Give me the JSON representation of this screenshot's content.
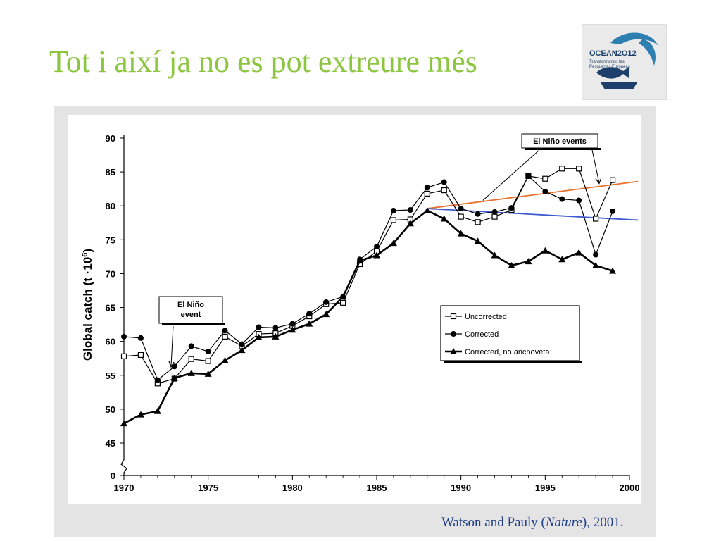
{
  "slide": {
    "title": "Tot i així ja no es pot extreure més",
    "citation_authors": "Watson and Pauly (",
    "citation_journal": "Nature",
    "citation_year": "), 2001."
  },
  "logo": {
    "name": "OCEAN2O12",
    "tagline_1": "Transformando las",
    "tagline_2": "Pesquerías Europeas",
    "colors": {
      "navy": "#1d3f6b",
      "teal": "#2c7fae",
      "light": "#cfe0ec"
    }
  },
  "chart_data": {
    "type": "line",
    "xlabel": "",
    "ylabel": "Global catch (t ·10",
    "ylabel_superscript": "6",
    "ylabel_close": ")",
    "x_ticks": [
      1970,
      1975,
      1980,
      1985,
      1990,
      1995,
      2000
    ],
    "x_tick_labels": [
      "1970",
      "1975",
      "1980",
      "1985",
      "1990",
      "1995",
      "2000"
    ],
    "y_ticks": [
      0,
      45,
      50,
      55,
      60,
      65,
      70,
      75,
      80,
      85,
      90
    ],
    "y_tick_labels": [
      "0",
      "45",
      "50",
      "55",
      "60",
      "65",
      "70",
      "75",
      "80",
      "85",
      "90"
    ],
    "y_axis_break": true,
    "xlim": [
      1970,
      2000
    ],
    "ylim": [
      45,
      90
    ],
    "grid": false,
    "legend_position": "right-center",
    "series": [
      {
        "name": "Uncorrected",
        "marker": "open-square",
        "x": [
          1970,
          1971,
          1972,
          1973,
          1974,
          1975,
          1976,
          1977,
          1978,
          1979,
          1980,
          1981,
          1982,
          1983,
          1984,
          1985,
          1986,
          1987,
          1988,
          1989,
          1990,
          1991,
          1992,
          1993,
          1994,
          1995,
          1996,
          1997,
          1998,
          1999
        ],
        "values": [
          57.8,
          58.0,
          53.8,
          54.5,
          57.4,
          57.1,
          60.7,
          59.3,
          61.1,
          61.2,
          62.3,
          63.7,
          65.5,
          65.7,
          71.4,
          73.3,
          77.9,
          78.0,
          81.8,
          82.3,
          78.4,
          77.6,
          78.4,
          79.4,
          84.4,
          84.0,
          85.5,
          85.5,
          78.1,
          83.8
        ]
      },
      {
        "name": "Corrected",
        "marker": "filled-circle",
        "x": [
          1970,
          1971,
          1972,
          1973,
          1974,
          1975,
          1976,
          1977,
          1978,
          1979,
          1980,
          1981,
          1982,
          1983,
          1984,
          1985,
          1986,
          1987,
          1988,
          1989,
          1990,
          1991,
          1992,
          1993,
          1994,
          1995,
          1996,
          1997,
          1998,
          1999
        ],
        "values": [
          60.7,
          60.5,
          54.3,
          56.3,
          59.3,
          58.5,
          61.6,
          59.6,
          62.1,
          62.0,
          62.6,
          64.1,
          65.8,
          66.6,
          72.1,
          74.0,
          79.3,
          79.4,
          82.7,
          83.5,
          79.6,
          78.8,
          79.1,
          79.7,
          84.4,
          82.1,
          81.0,
          80.8,
          72.8,
          79.2
        ]
      },
      {
        "name": "Corrected, no anchoveta",
        "marker": "filled-triangle",
        "x": [
          1970,
          1971,
          1972,
          1973,
          1974,
          1975,
          1976,
          1977,
          1978,
          1979,
          1980,
          1981,
          1982,
          1983,
          1984,
          1985,
          1986,
          1987,
          1988,
          1989,
          1990,
          1991,
          1992,
          1993,
          1994,
          1995,
          1996,
          1997,
          1998,
          1999
        ],
        "values": [
          47.9,
          49.2,
          49.7,
          54.6,
          55.3,
          55.2,
          57.2,
          58.7,
          60.6,
          60.7,
          61.7,
          62.6,
          64.0,
          66.6,
          71.9,
          72.7,
          74.5,
          77.4,
          79.3,
          78.1,
          75.9,
          74.8,
          72.7,
          71.2,
          71.8,
          73.4,
          72.1,
          73.1,
          71.2,
          70.4
        ]
      }
    ],
    "trend_lines": [
      {
        "color": "#e8702d",
        "x": [
          1988,
          2000.5
        ],
        "values": [
          79.6,
          83.6
        ]
      },
      {
        "color": "#3f5bd1",
        "x": [
          1988,
          2000.5
        ],
        "values": [
          79.6,
          77.9
        ]
      }
    ],
    "annotations": [
      {
        "label_lines": [
          "El Niño",
          "event"
        ],
        "target_x": 1972.8,
        "target_y": 55.6
      },
      {
        "label_lines": [
          "El Niño events"
        ],
        "targets": [
          [
            1991.3,
            80.6
          ],
          [
            1998.2,
            83.2
          ]
        ]
      }
    ],
    "colors": {
      "axis": "#000000",
      "series": "#000000"
    }
  }
}
